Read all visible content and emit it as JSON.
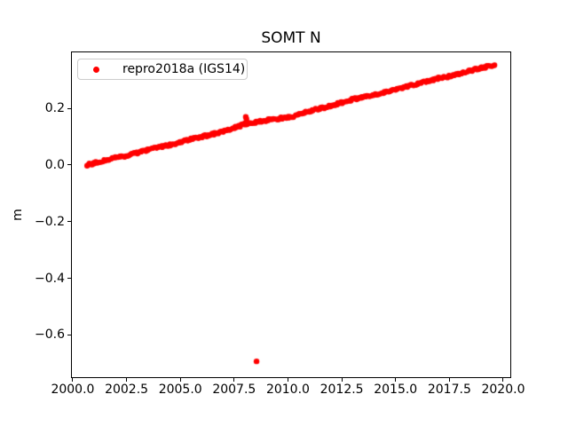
{
  "window": {
    "background": "#ffffff"
  },
  "chart_data": {
    "type": "scatter",
    "title": "SOMT N",
    "xlabel": "",
    "ylabel": "m",
    "xlim": [
      1999.92,
      2020.33
    ],
    "ylim": [
      -0.749,
      0.401
    ],
    "grid": false,
    "axis_color": "#000000",
    "x_ticks": {
      "values": [
        2000.0,
        2002.5,
        2005.0,
        2007.5,
        2010.0,
        2012.5,
        2015.0,
        2017.5,
        2020.0
      ],
      "labels": [
        "2000.0",
        "2002.5",
        "2005.0",
        "2007.5",
        "2010.0",
        "2012.5",
        "2015.0",
        "2017.5",
        "2020.0"
      ]
    },
    "y_ticks": {
      "values": [
        0.2,
        0.0,
        -0.2,
        -0.4,
        -0.6
      ],
      "labels": [
        "0.2",
        "0.0",
        "−0.2",
        "−0.4",
        "−0.6"
      ]
    },
    "legend": {
      "position": "upper-left",
      "border_color": "#cccccc",
      "entries": [
        {
          "label": "repro2018a (IGS14)",
          "marker": "dot",
          "color": "#ff0000"
        }
      ]
    },
    "series": [
      {
        "name": "repro2018a (IGS14)",
        "color": "#ff0000",
        "marker": "dot",
        "marker_px_radius": 3,
        "trend": {
          "start": [
            2000.65,
            0.0
          ],
          "end": [
            2019.58,
            0.354
          ],
          "slope_m_per_year": 0.0187
        },
        "points": [
          [
            2000.65,
            0.0
          ],
          [
            2001.0,
            0.007
          ],
          [
            2001.5,
            0.017
          ],
          [
            2002.0,
            0.026
          ],
          [
            2002.5,
            0.033
          ],
          [
            2003.0,
            0.043
          ],
          [
            2003.5,
            0.055
          ],
          [
            2004.0,
            0.063
          ],
          [
            2004.5,
            0.071
          ],
          [
            2005.0,
            0.08
          ],
          [
            2005.5,
            0.092
          ],
          [
            2006.0,
            0.101
          ],
          [
            2006.5,
            0.109
          ],
          [
            2007.0,
            0.119
          ],
          [
            2007.5,
            0.131
          ],
          [
            2008.0,
            0.145
          ],
          [
            2008.5,
            0.152
          ],
          [
            2009.0,
            0.158
          ],
          [
            2009.5,
            0.163
          ],
          [
            2010.0,
            0.168
          ],
          [
            2010.5,
            0.178
          ],
          [
            2011.0,
            0.19
          ],
          [
            2011.5,
            0.2
          ],
          [
            2012.0,
            0.21
          ],
          [
            2012.5,
            0.22
          ],
          [
            2013.0,
            0.231
          ],
          [
            2013.5,
            0.24
          ],
          [
            2014.0,
            0.249
          ],
          [
            2014.5,
            0.258
          ],
          [
            2015.0,
            0.268
          ],
          [
            2015.5,
            0.277
          ],
          [
            2016.0,
            0.286
          ],
          [
            2016.5,
            0.297
          ],
          [
            2017.0,
            0.306
          ],
          [
            2017.5,
            0.314
          ],
          [
            2018.0,
            0.324
          ],
          [
            2018.5,
            0.334
          ],
          [
            2019.0,
            0.343
          ],
          [
            2019.58,
            0.354
          ]
        ],
        "spike_points": [
          [
            2008.04,
            0.17
          ],
          [
            2008.07,
            0.163
          ]
        ],
        "outliers": [
          [
            2008.54,
            -0.693
          ]
        ]
      }
    ]
  }
}
